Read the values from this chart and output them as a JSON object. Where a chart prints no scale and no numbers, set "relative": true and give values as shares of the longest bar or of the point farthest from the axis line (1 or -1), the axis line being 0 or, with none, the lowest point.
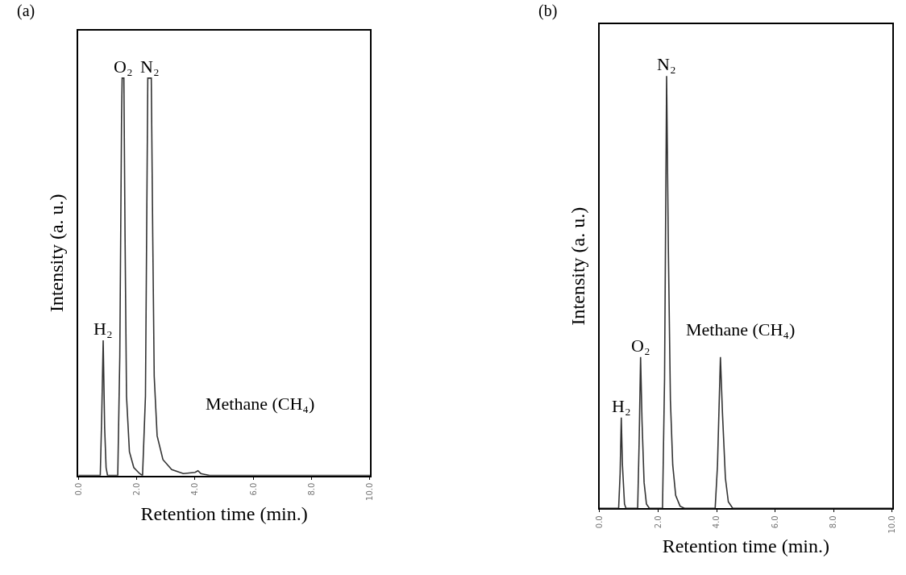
{
  "chart_data": [
    {
      "type": "line",
      "title": "(a)",
      "xlabel": "Retention time (min.)",
      "ylabel": "Intensity (a. u.)",
      "relative": true,
      "xlim": [
        0,
        10
      ],
      "xticks": [
        {
          "value": 0,
          "label": "0.0"
        },
        {
          "value": 2,
          "label": "2.0"
        },
        {
          "value": 4,
          "label": "4.0"
        },
        {
          "value": 6,
          "label": "6.0"
        },
        {
          "value": 8,
          "label": "8.0"
        },
        {
          "value": 10,
          "label": "10.0"
        }
      ],
      "tick_labels": "x",
      "series": [
        {
          "color": "#333333",
          "x": [
            0,
            0.75,
            0.8,
            0.85,
            0.9,
            0.95,
            1.0,
            1.35,
            1.42,
            1.48,
            1.5,
            1.56,
            1.6,
            1.65,
            1.75,
            1.9,
            2.1,
            2.2,
            2.3,
            2.38,
            2.5,
            2.55,
            2.6,
            2.7,
            2.9,
            3.2,
            3.6,
            4.0,
            4.1,
            4.2,
            4.5,
            10
          ],
          "values": [
            0,
            0,
            0.15,
            0.34,
            0.12,
            0.02,
            0,
            0,
            0.3,
            0.9,
            1,
            1,
            0.6,
            0.2,
            0.06,
            0.02,
            0.005,
            0,
            0.2,
            1,
            1,
            0.6,
            0.25,
            0.1,
            0.04,
            0.015,
            0.005,
            0.008,
            0.012,
            0.005,
            0,
            0
          ]
        }
      ],
      "annotations": [
        {
          "text": "H₂",
          "x": 0.85,
          "y": 0.34
        },
        {
          "text": "O₂",
          "x": 1.53,
          "y": 1
        },
        {
          "text": "N₂",
          "x": 2.45,
          "y": 1
        },
        "Methane (CH₄)"
      ]
    },
    {
      "type": "line",
      "title": "(b)",
      "xlabel": "Retention time (min.)",
      "ylabel": "Intensity (a. u.)",
      "relative": true,
      "xlim": [
        0,
        10
      ],
      "xticks": [
        {
          "value": 0,
          "label": "0.0"
        },
        {
          "value": 2,
          "label": "2.0"
        },
        {
          "value": 4,
          "label": "4.0"
        },
        {
          "value": 6,
          "label": "6.0"
        },
        {
          "value": 8,
          "label": "8.0"
        },
        {
          "value": 10,
          "label": "10.0"
        }
      ],
      "tick_labels": "x",
      "series": [
        {
          "color": "#333333",
          "x": [
            0,
            0.65,
            0.7,
            0.74,
            0.78,
            0.85,
            0.9,
            1.3,
            1.35,
            1.4,
            1.45,
            1.52,
            1.6,
            1.7,
            2.15,
            2.22,
            2.29,
            2.35,
            2.42,
            2.5,
            2.6,
            2.75,
            2.9,
            3.95,
            4.03,
            4.13,
            4.2,
            4.3,
            4.4,
            4.55,
            10
          ],
          "values": [
            0,
            0,
            0.08,
            0.21,
            0.1,
            0.01,
            0,
            0,
            0.15,
            0.35,
            0.2,
            0.06,
            0.01,
            0,
            0,
            0.3,
            1,
            0.6,
            0.25,
            0.1,
            0.03,
            0.005,
            0,
            0,
            0.1,
            0.35,
            0.22,
            0.07,
            0.015,
            0,
            0
          ]
        }
      ],
      "annotations": [
        {
          "text": "H₂",
          "x": 0.74,
          "y": 0.21
        },
        {
          "text": "O₂",
          "x": 1.4,
          "y": 0.35
        },
        {
          "text": "N₂",
          "x": 2.29,
          "y": 1
        },
        "Methane (CH₄)"
      ]
    }
  ]
}
